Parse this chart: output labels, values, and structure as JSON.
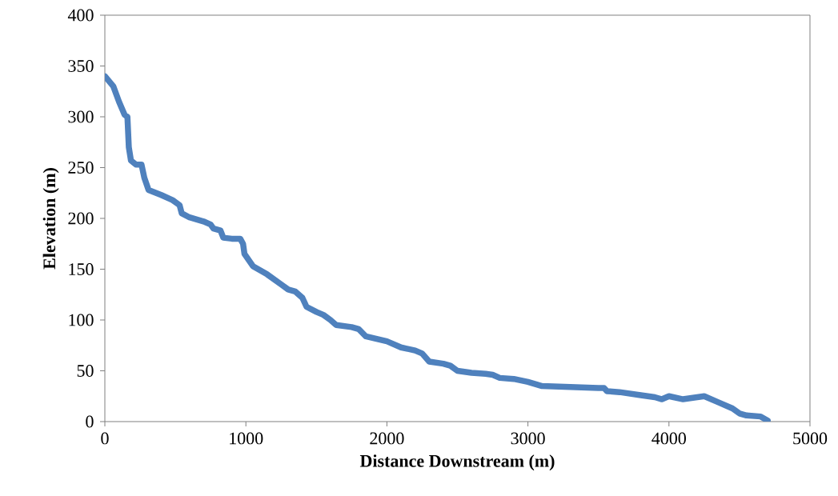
{
  "chart_data": {
    "type": "line",
    "xlabel": "Distance Downstream (m)",
    "ylabel": "Elevation (m)",
    "x": [
      0,
      60,
      100,
      140,
      160,
      170,
      185,
      220,
      260,
      280,
      310,
      400,
      480,
      530,
      545,
      600,
      700,
      750,
      770,
      820,
      840,
      900,
      960,
      980,
      990,
      1050,
      1150,
      1250,
      1300,
      1350,
      1400,
      1430,
      1500,
      1550,
      1600,
      1640,
      1750,
      1800,
      1850,
      2000,
      2100,
      2200,
      2250,
      2300,
      2400,
      2450,
      2500,
      2600,
      2700,
      2750,
      2800,
      2900,
      3000,
      3100,
      3300,
      3500,
      3540,
      3560,
      3650,
      3800,
      3900,
      3950,
      4000,
      4100,
      4200,
      4250,
      4350,
      4450,
      4500,
      4550,
      4650,
      4700
    ],
    "series": [
      {
        "color": "#4f81bd",
        "values": [
          340,
          330,
          315,
          302,
          300,
          270,
          257,
          253,
          253,
          240,
          228,
          223,
          218,
          213,
          205,
          201,
          197,
          194,
          190,
          188,
          181,
          180,
          180,
          175,
          165,
          153,
          145,
          135,
          130,
          128,
          122,
          113,
          108,
          105,
          100,
          95,
          93,
          91,
          84,
          79,
          73,
          70,
          67,
          59,
          57,
          55,
          50,
          48,
          47,
          46,
          43,
          42,
          39,
          35,
          34,
          33,
          33,
          30,
          29,
          26,
          24,
          22,
          25,
          22,
          24,
          25,
          19,
          13,
          8,
          6,
          5,
          1
        ]
      }
    ],
    "xlim": [
      0,
      5000
    ],
    "ylim": [
      0,
      400
    ],
    "xticks": [
      0,
      1000,
      2000,
      3000,
      4000,
      5000
    ],
    "yticks": [
      0,
      50,
      100,
      150,
      200,
      250,
      300,
      350,
      400
    ],
    "grid": false,
    "marker": "none",
    "line_style": "solid"
  }
}
